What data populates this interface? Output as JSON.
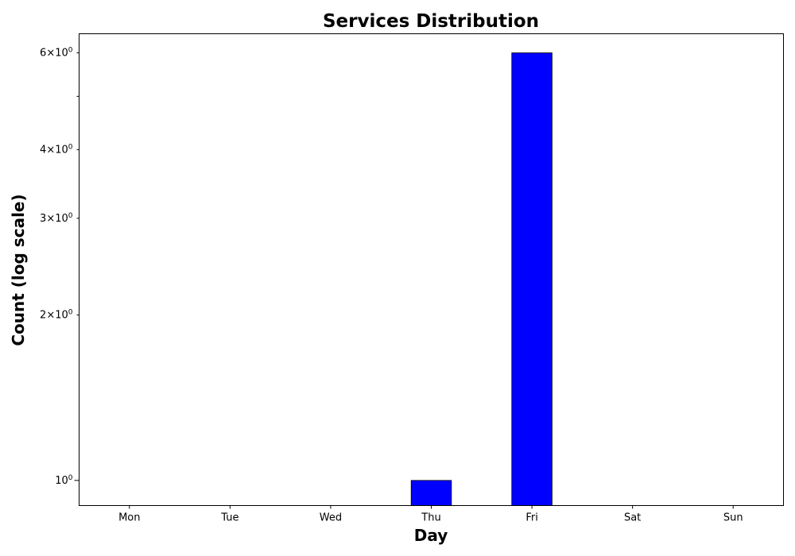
{
  "chart_data": {
    "type": "bar",
    "title": "Services Distribution",
    "xlabel": "Day",
    "ylabel": "Count (log scale)",
    "categories": [
      "Mon",
      "Tue",
      "Wed",
      "Thu",
      "Fri",
      "Sat",
      "Sun"
    ],
    "values": [
      0,
      0,
      0,
      1,
      6,
      0,
      0
    ],
    "yscale": "log",
    "ylim": [
      0.9,
      6.5
    ],
    "major_ticks": [
      {
        "value": 1,
        "label": "10"
      }
    ],
    "minor_ticks": [
      {
        "value": 2,
        "label": "2×10"
      },
      {
        "value": 3,
        "label": "3×10"
      },
      {
        "value": 4,
        "label": "4×10"
      },
      {
        "value": 5,
        "label": ""
      },
      {
        "value": 6,
        "label": "6×10"
      }
    ],
    "tick_exponent": "0",
    "bar_color": "#0000ff",
    "grid": false
  }
}
